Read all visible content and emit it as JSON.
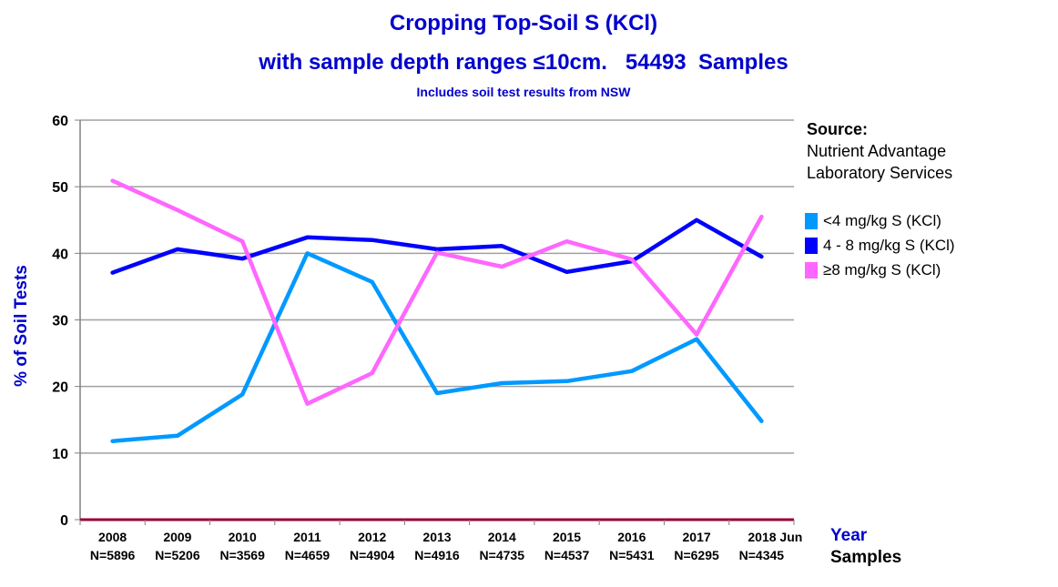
{
  "chart_data": {
    "type": "line",
    "title": "Cropping Top-Soil S (KCl)",
    "subtitle": "with sample depth ranges ≤10cm.   54493  Samples",
    "note": "Includes soil test results from NSW",
    "xlabel": "Year",
    "xlabel2": "Samples",
    "ylabel": "% of Soil Tests",
    "ylim": [
      0,
      60
    ],
    "yticks": [
      "0",
      "10",
      "20",
      "30",
      "40",
      "50",
      "60"
    ],
    "categories": [
      "2008",
      "2009",
      "2010",
      "2011",
      "2012",
      "2013",
      "2014",
      "2015",
      "2016",
      "2017",
      "2018 Jun"
    ],
    "sample_counts": [
      "N=5896",
      "N=5206",
      "N=3569",
      "N=4659",
      "N=4904",
      "N=4916",
      "N=4735",
      "N=4537",
      "N=5431",
      "N=6295",
      "N=4345"
    ],
    "grid": true,
    "legend_position": "right",
    "series": [
      {
        "name": "<4 mg/kg S (KCl)",
        "color": "#0099ff",
        "values": [
          11.8,
          12.6,
          18.8,
          40.0,
          35.7,
          19.0,
          20.5,
          20.8,
          22.3,
          27.1,
          14.8
        ]
      },
      {
        "name": "4 - 8 mg/kg S (KCl)",
        "color": "#0000ff",
        "values": [
          37.1,
          40.6,
          39.2,
          42.4,
          42.0,
          40.6,
          41.1,
          37.2,
          38.8,
          45.0,
          39.5
        ]
      },
      {
        "name": "≥8 mg/kg S (KCl)",
        "color": "#ff66ff",
        "values": [
          50.9,
          46.5,
          41.8,
          17.4,
          22.0,
          40.1,
          38.0,
          41.8,
          39.1,
          27.8,
          45.5
        ]
      }
    ]
  },
  "source": {
    "heading": "Source:",
    "line1": "Nutrient Advantage",
    "line2": "Laboratory Services"
  }
}
